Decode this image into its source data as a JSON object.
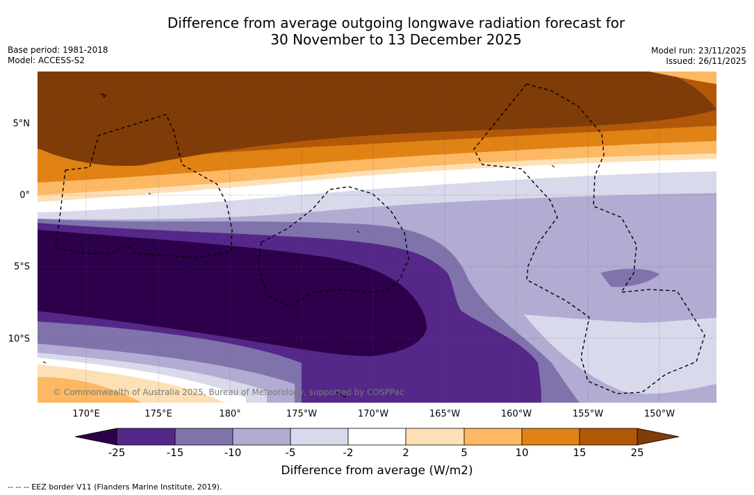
{
  "title": {
    "line1": "Difference from average outgoing longwave radiation forecast for",
    "line2": "30 November to 13 December 2025"
  },
  "meta_left": {
    "base_period": "Base period: 1981-2018",
    "model": "Model: ACCESS-S2"
  },
  "meta_right": {
    "model_run": "Model run: 23/11/2025",
    "issued": "Issued: 26/11/2025"
  },
  "latitude_labels": [
    "5°N",
    "0°",
    "5°S",
    "10°S"
  ],
  "longitude_labels": [
    "170°E",
    "175°E",
    "180°",
    "175°W",
    "170°W",
    "165°W",
    "160°W",
    "155°W",
    "150°W"
  ],
  "colorbar": {
    "ticks": [
      "-25",
      "-15",
      "-10",
      "-5",
      "-2",
      "2",
      "5",
      "10",
      "15",
      "25"
    ],
    "colors": [
      "#2d004b",
      "#542788",
      "#8073ac",
      "#b2abd2",
      "#d8daeb",
      "#ffffff",
      "#fee0b6",
      "#fdb863",
      "#e08214",
      "#b35806",
      "#7f3b08"
    ],
    "label": "Difference from average (W/m2)"
  },
  "copyright": "© Commonwealth of Australia 2025, Bureau of Meteorology, supported by COSPPac",
  "footer": "--  --  -- EEZ border V11 (Flanders Marine Institute, 2019)."
}
